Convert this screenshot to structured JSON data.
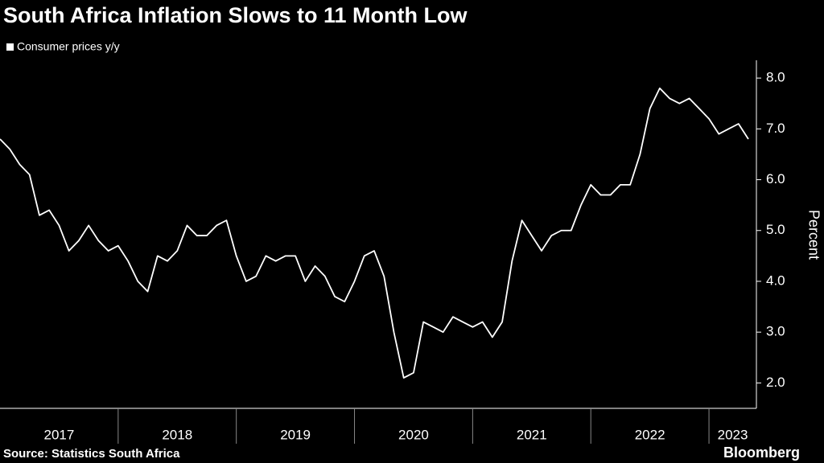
{
  "chart_data": {
    "type": "line",
    "title": "South Africa Inflation Slows to 11 Month Low",
    "y_label": "Percent",
    "source": "Source: Statistics South Africa",
    "brand": "Bloomberg",
    "x": [
      "2016-12",
      "2017-01",
      "2017-02",
      "2017-03",
      "2017-04",
      "2017-05",
      "2017-06",
      "2017-07",
      "2017-08",
      "2017-09",
      "2017-10",
      "2017-11",
      "2017-12",
      "2018-01",
      "2018-02",
      "2018-03",
      "2018-04",
      "2018-05",
      "2018-06",
      "2018-07",
      "2018-08",
      "2018-09",
      "2018-10",
      "2018-11",
      "2018-12",
      "2019-01",
      "2019-02",
      "2019-03",
      "2019-04",
      "2019-05",
      "2019-06",
      "2019-07",
      "2019-08",
      "2019-09",
      "2019-10",
      "2019-11",
      "2019-12",
      "2020-01",
      "2020-02",
      "2020-03",
      "2020-04",
      "2020-05",
      "2020-06",
      "2020-07",
      "2020-08",
      "2020-09",
      "2020-10",
      "2020-11",
      "2020-12",
      "2021-01",
      "2021-02",
      "2021-03",
      "2021-04",
      "2021-05",
      "2021-06",
      "2021-07",
      "2021-08",
      "2021-09",
      "2021-10",
      "2021-11",
      "2021-12",
      "2022-01",
      "2022-02",
      "2022-03",
      "2022-04",
      "2022-05",
      "2022-06",
      "2022-07",
      "2022-08",
      "2022-09",
      "2022-10",
      "2022-11",
      "2022-12",
      "2023-01",
      "2023-02",
      "2023-03",
      "2023-04"
    ],
    "series": [
      {
        "name": "Consumer prices y/y",
        "color": "#ffffff",
        "values": [
          6.8,
          6.6,
          6.3,
          6.1,
          5.3,
          5.4,
          5.1,
          4.6,
          4.8,
          5.1,
          4.8,
          4.6,
          4.7,
          4.4,
          4.0,
          3.8,
          4.5,
          4.4,
          4.6,
          5.1,
          4.9,
          4.9,
          5.1,
          5.2,
          4.5,
          4.0,
          4.1,
          4.5,
          4.4,
          4.5,
          4.5,
          4.0,
          4.3,
          4.1,
          3.7,
          3.6,
          4.0,
          4.5,
          4.6,
          4.1,
          3.0,
          2.1,
          2.2,
          3.2,
          3.1,
          3.0,
          3.3,
          3.2,
          3.1,
          3.2,
          2.9,
          3.2,
          4.4,
          5.2,
          4.9,
          4.6,
          4.9,
          5.0,
          5.0,
          5.5,
          5.9,
          5.7,
          5.7,
          5.9,
          5.9,
          6.5,
          7.4,
          7.8,
          7.6,
          7.5,
          7.6,
          7.4,
          7.2,
          6.9,
          7.0,
          7.1,
          6.8
        ]
      }
    ],
    "xticks": [
      2017,
      2018,
      2019,
      2020,
      2021,
      2022,
      2023
    ],
    "ylim": [
      1.5,
      8.35
    ],
    "yticks": [
      {
        "value": 2,
        "label": "2.0"
      },
      {
        "value": 3,
        "label": "3.0"
      },
      {
        "value": 4,
        "label": "4.0"
      },
      {
        "value": 5,
        "label": "5.0"
      },
      {
        "value": 6,
        "label": "6.0"
      },
      {
        "value": 7,
        "label": "7.0"
      },
      {
        "value": 8,
        "label": "8.0"
      }
    ],
    "legend": "top-left"
  }
}
